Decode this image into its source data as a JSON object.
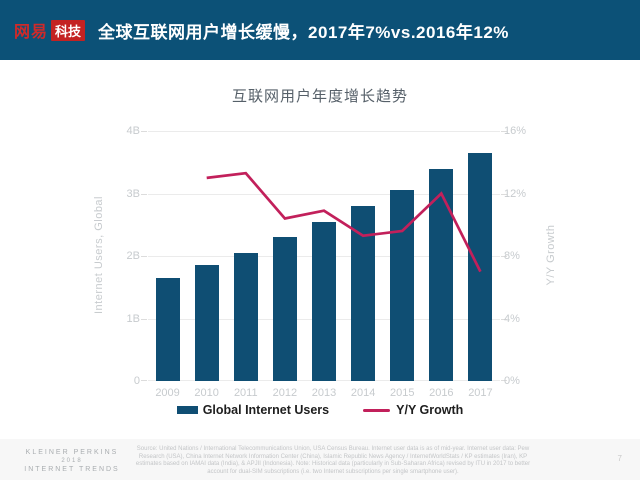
{
  "header": {
    "logo_brand": "网易",
    "logo_sub": "科技",
    "title": "全球互联网用户增长缓慢，2017年7%vs.2016年12%"
  },
  "chart_data": {
    "type": "bar",
    "title": "互联网用户年度增长趋势",
    "categories": [
      "2009",
      "2010",
      "2011",
      "2012",
      "2013",
      "2014",
      "2015",
      "2016",
      "2017"
    ],
    "series": [
      {
        "name": "Global Internet Users",
        "type": "bar",
        "axis": "left",
        "unit": "billions",
        "values": [
          1.65,
          1.85,
          2.05,
          2.3,
          2.55,
          2.8,
          3.05,
          3.4,
          3.65
        ]
      },
      {
        "name": "Y/Y Growth",
        "type": "line",
        "axis": "right",
        "unit": "%",
        "values": [
          null,
          13.0,
          13.3,
          10.4,
          10.9,
          9.3,
          9.6,
          12.0,
          7.0
        ]
      }
    ],
    "ylabel_left": "Internet Users, Global",
    "ylabel_right": "Y/Y Growth",
    "ylim_left": [
      0,
      4
    ],
    "ylim_right": [
      0,
      16
    ],
    "yticks_left": [
      "0",
      "1B",
      "2B",
      "3B",
      "4B"
    ],
    "yticks_right": [
      "0%",
      "4%",
      "8%",
      "12%",
      "16%"
    ],
    "grid": true,
    "legend_position": "bottom",
    "colors": {
      "bar": "#0f4e73",
      "line": "#c2205b",
      "header": "#0c5177",
      "logo_red": "#c42222"
    }
  },
  "legend": {
    "bar_label": "Global Internet Users",
    "line_label": "Y/Y Growth"
  },
  "footer": {
    "brand_lines": [
      "KLEINER PERKINS",
      "2018",
      "INTERNET TRENDS"
    ],
    "source": "Source: United Nations / International Telecommunications Union, USA Census Bureau. Internet user data is as of mid-year. Internet user data: Pew Research (USA), China Internet Network Information Center (China), Islamic Republic News Agency / InternetWorldStats / KP estimates (Iran), KP estimates based on IAMAI data (India), & APJII (Indonesia). Note: Historical data (particularly in Sub-Saharan Africa) revised by ITU in 2017 to better account for dual-SIM subscriptions (i.e. two Internet subscriptions per single smartphone user).",
    "page": "7"
  }
}
